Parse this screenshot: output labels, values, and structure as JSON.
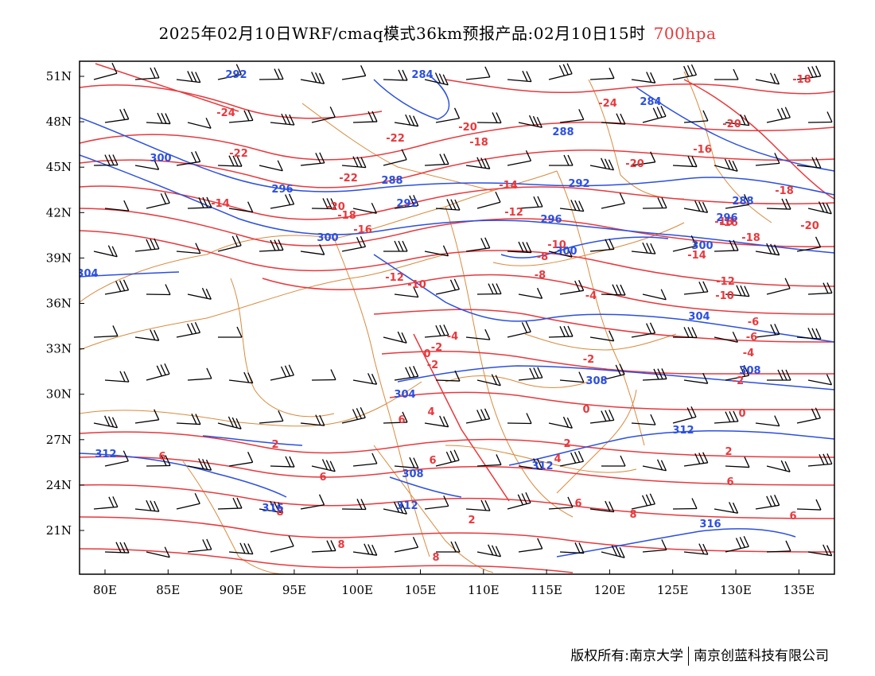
{
  "title": {
    "main": "2025年02月10日WRF/cmaq模式36km预报产品:02月10日15时",
    "level": "700hpa",
    "level_color": "#e8383c"
  },
  "axes": {
    "lon_ticks": [
      "80E",
      "85E",
      "90E",
      "95E",
      "100E",
      "105E",
      "110E",
      "115E",
      "120E",
      "125E",
      "130E",
      "135E"
    ],
    "lat_ticks": [
      "51N",
      "48N",
      "45N",
      "42N",
      "39N",
      "36N",
      "33N",
      "30N",
      "27N",
      "24N",
      "21N"
    ]
  },
  "colors": {
    "temperature": "#e8383c",
    "geopotential": "#2b4fe0",
    "wind": "#000000",
    "boundary": "#d98a3d"
  },
  "temperature_labels": [
    "-18",
    "-24",
    "-20",
    "-24",
    "-22",
    "-20",
    "-18",
    "-16",
    "-22",
    "-22",
    "-20",
    "-18",
    "-14",
    "-20",
    "-18",
    "-16",
    "-12",
    "-14",
    "-16",
    "-18",
    "-20",
    "-18",
    "-10",
    "-8",
    "-14",
    "-12",
    "-10",
    "-8",
    "-12",
    "-10",
    "-6",
    "-4",
    "-4",
    "-6",
    "-2",
    "-4",
    "0",
    "-2",
    "-2",
    "-2",
    "0",
    "0",
    "2",
    "2",
    "6",
    "4",
    "2",
    "2",
    "4",
    "6",
    "6",
    "6",
    "6",
    "6",
    "6",
    "8",
    "8",
    "8",
    "8"
  ],
  "height_labels": [
    "292",
    "284",
    "284",
    "288",
    "300",
    "296",
    "288",
    "292",
    "292",
    "300",
    "296",
    "300",
    "304",
    "288",
    "296",
    "304",
    "308",
    "308",
    "300",
    "304",
    "312",
    "312",
    "312",
    "308",
    "312",
    "316",
    "316"
  ],
  "wind_unit_note": "",
  "footer": {
    "left": "版权所有:南京大学",
    "right": "南京创蓝科技有限公司"
  }
}
